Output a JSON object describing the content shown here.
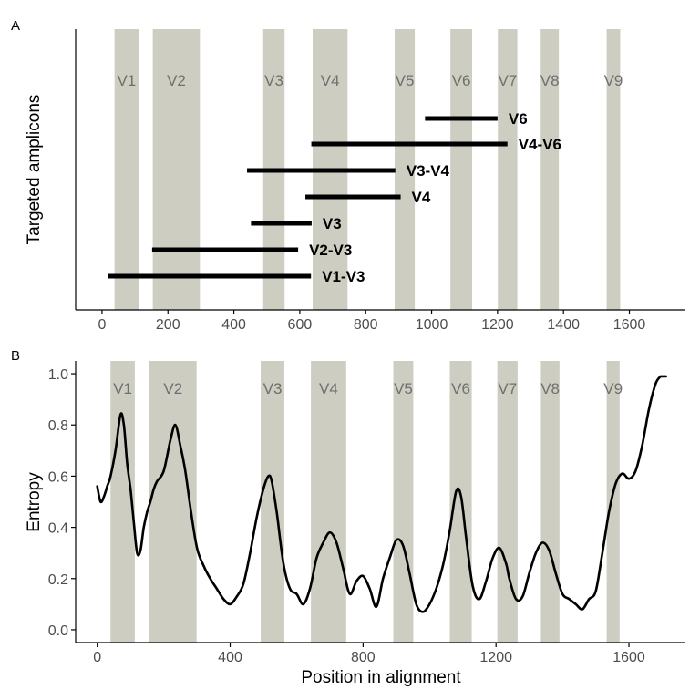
{
  "chart_data": [
    {
      "panel": "A",
      "type": "bar",
      "ylabel": "Targeted amplicons",
      "xlim": [
        -80,
        1770
      ],
      "xticks": [
        0,
        200,
        400,
        600,
        800,
        1000,
        1200,
        1400,
        1600
      ],
      "regions": [
        {
          "name": "V1",
          "start": 38,
          "end": 111
        },
        {
          "name": "V2",
          "start": 154,
          "end": 297
        },
        {
          "name": "V3",
          "start": 489,
          "end": 554
        },
        {
          "name": "V4",
          "start": 639,
          "end": 745
        },
        {
          "name": "V5",
          "start": 888,
          "end": 949
        },
        {
          "name": "V6",
          "start": 1057,
          "end": 1123
        },
        {
          "name": "V7",
          "start": 1201,
          "end": 1260
        },
        {
          "name": "V8",
          "start": 1331,
          "end": 1386
        },
        {
          "name": "V9",
          "start": 1531,
          "end": 1572
        }
      ],
      "amplicons": [
        {
          "name": "V6",
          "start": 980,
          "end": 1200
        },
        {
          "name": "V4-V6",
          "start": 635,
          "end": 1230
        },
        {
          "name": "V3-V4",
          "start": 440,
          "end": 890
        },
        {
          "name": "V4",
          "start": 617,
          "end": 906
        },
        {
          "name": "V3",
          "start": 452,
          "end": 636
        },
        {
          "name": "V2-V3",
          "start": 152,
          "end": 595
        },
        {
          "name": "V1-V3",
          "start": 18,
          "end": 634
        }
      ]
    },
    {
      "panel": "B",
      "type": "line",
      "xlabel": "Position in alignment",
      "ylabel": "Entropy",
      "xlim": [
        -65,
        1770
      ],
      "ylim": [
        -0.05,
        1.05
      ],
      "xticks": [
        0,
        400,
        800,
        1200,
        1600
      ],
      "yticks": [
        "0.0",
        "0.2",
        "0.4",
        "0.6",
        "0.8",
        "1.0"
      ],
      "regions": [
        {
          "name": "V1",
          "start": 40,
          "end": 113
        },
        {
          "name": "V2",
          "start": 157,
          "end": 299
        },
        {
          "name": "V3",
          "start": 492,
          "end": 563
        },
        {
          "name": "V4",
          "start": 643,
          "end": 749
        },
        {
          "name": "V5",
          "start": 891,
          "end": 951
        },
        {
          "name": "V6",
          "start": 1061,
          "end": 1127
        },
        {
          "name": "V7",
          "start": 1204,
          "end": 1265
        },
        {
          "name": "V8",
          "start": 1335,
          "end": 1391
        },
        {
          "name": "V9",
          "start": 1533,
          "end": 1572
        }
      ],
      "x": [
        0,
        10,
        20,
        30,
        40,
        55,
        70,
        80,
        90,
        100,
        110,
        120,
        130,
        140,
        150,
        160,
        170,
        180,
        200,
        220,
        235,
        250,
        265,
        280,
        300,
        320,
        340,
        360,
        380,
        400,
        420,
        440,
        460,
        480,
        500,
        515,
        525,
        540,
        560,
        580,
        600,
        620,
        640,
        660,
        680,
        700,
        720,
        740,
        760,
        780,
        800,
        820,
        840,
        860,
        880,
        900,
        920,
        940,
        960,
        980,
        1000,
        1020,
        1040,
        1060,
        1080,
        1095,
        1110,
        1130,
        1150,
        1170,
        1190,
        1210,
        1230,
        1240,
        1260,
        1280,
        1300,
        1320,
        1340,
        1360,
        1380,
        1400,
        1420,
        1440,
        1460,
        1480,
        1500,
        1520,
        1540,
        1560,
        1580,
        1600,
        1620,
        1640,
        1660,
        1680,
        1695
      ],
      "y": [
        0.56,
        0.5,
        0.52,
        0.56,
        0.6,
        0.7,
        0.84,
        0.8,
        0.65,
        0.55,
        0.42,
        0.3,
        0.31,
        0.4,
        0.46,
        0.5,
        0.55,
        0.58,
        0.62,
        0.74,
        0.8,
        0.72,
        0.62,
        0.48,
        0.32,
        0.25,
        0.2,
        0.16,
        0.12,
        0.1,
        0.13,
        0.18,
        0.3,
        0.44,
        0.55,
        0.6,
        0.58,
        0.46,
        0.26,
        0.16,
        0.14,
        0.1,
        0.16,
        0.28,
        0.34,
        0.38,
        0.34,
        0.24,
        0.14,
        0.19,
        0.21,
        0.16,
        0.09,
        0.2,
        0.28,
        0.35,
        0.33,
        0.22,
        0.1,
        0.07,
        0.1,
        0.16,
        0.25,
        0.38,
        0.54,
        0.52,
        0.36,
        0.17,
        0.12,
        0.19,
        0.28,
        0.32,
        0.26,
        0.2,
        0.12,
        0.13,
        0.22,
        0.3,
        0.34,
        0.31,
        0.22,
        0.14,
        0.12,
        0.1,
        0.08,
        0.12,
        0.15,
        0.3,
        0.46,
        0.57,
        0.61,
        0.59,
        0.62,
        0.72,
        0.86,
        0.96,
        0.99
      ]
    }
  ],
  "colors": {
    "region_band": "#cdcdc2",
    "line": "#000000",
    "axis": "#000000",
    "region_label": "#6f6f6f",
    "tick_label": "#4d4d4d"
  }
}
